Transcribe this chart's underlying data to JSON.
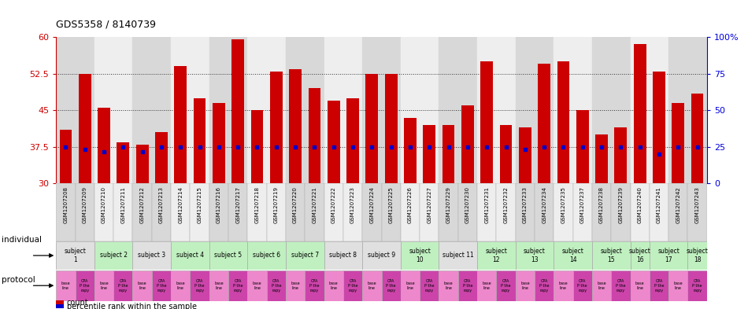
{
  "title": "GDS5358 / 8140739",
  "gsm_labels": [
    "GSM1207208",
    "GSM1207209",
    "GSM1207210",
    "GSM1207211",
    "GSM1207212",
    "GSM1207213",
    "GSM1207214",
    "GSM1207215",
    "GSM1207216",
    "GSM1207217",
    "GSM1207218",
    "GSM1207219",
    "GSM1207220",
    "GSM1207221",
    "GSM1207222",
    "GSM1207223",
    "GSM1207224",
    "GSM1207225",
    "GSM1207226",
    "GSM1207227",
    "GSM1207229",
    "GSM1207230",
    "GSM1207231",
    "GSM1207232",
    "GSM1207233",
    "GSM1207234",
    "GSM1207235",
    "GSM1207237",
    "GSM1207238",
    "GSM1207239",
    "GSM1207240",
    "GSM1207241",
    "GSM1207242",
    "GSM1207243"
  ],
  "bar_values": [
    41.0,
    52.5,
    45.5,
    38.5,
    38.0,
    40.5,
    54.0,
    47.5,
    46.5,
    59.5,
    45.0,
    53.0,
    53.5,
    49.5,
    47.0,
    47.5,
    52.5,
    52.5,
    43.5,
    42.0,
    42.0,
    46.0,
    55.0,
    42.0,
    41.5,
    54.5,
    55.0,
    45.0,
    40.0,
    41.5,
    58.5,
    53.0,
    46.5,
    48.5
  ],
  "percentile_values": [
    37.5,
    37.0,
    36.5,
    37.5,
    36.5,
    37.5,
    37.5,
    37.5,
    37.5,
    37.5,
    37.5,
    37.5,
    37.5,
    37.5,
    37.5,
    37.5,
    37.5,
    37.5,
    37.5,
    37.5,
    37.5,
    37.5,
    37.5,
    37.5,
    37.0,
    37.5,
    37.5,
    37.5,
    37.5,
    37.5,
    37.5,
    36.0,
    37.5,
    37.5
  ],
  "ylim": [
    30,
    60
  ],
  "yticks": [
    30,
    37.5,
    45,
    52.5,
    60
  ],
  "ytick_labels": [
    "30",
    "37.5",
    "45",
    "52.5",
    "60"
  ],
  "right_ytick_pcts": [
    0,
    25,
    50,
    75,
    100
  ],
  "bar_color": "#cc0000",
  "percentile_color": "#0000cc",
  "bar_width": 0.65,
  "col_bg_even": "#d8d8d8",
  "col_bg_odd": "#eeeeee",
  "subjects": [
    {
      "label": "subject\n1",
      "start": 0,
      "end": 2,
      "color": "#e0e0e0"
    },
    {
      "label": "subject 2",
      "start": 2,
      "end": 4,
      "color": "#c0f0c0"
    },
    {
      "label": "subject 3",
      "start": 4,
      "end": 6,
      "color": "#e0e0e0"
    },
    {
      "label": "subject 4",
      "start": 6,
      "end": 8,
      "color": "#c0f0c0"
    },
    {
      "label": "subject 5",
      "start": 8,
      "end": 10,
      "color": "#c0f0c0"
    },
    {
      "label": "subject 6",
      "start": 10,
      "end": 12,
      "color": "#c0f0c0"
    },
    {
      "label": "subject 7",
      "start": 12,
      "end": 14,
      "color": "#c0f0c0"
    },
    {
      "label": "subject 8",
      "start": 14,
      "end": 16,
      "color": "#e0e0e0"
    },
    {
      "label": "subject 9",
      "start": 16,
      "end": 18,
      "color": "#e0e0e0"
    },
    {
      "label": "subject\n10",
      "start": 18,
      "end": 20,
      "color": "#c0f0c0"
    },
    {
      "label": "subject 11",
      "start": 20,
      "end": 22,
      "color": "#e0e0e0"
    },
    {
      "label": "subject\n12",
      "start": 22,
      "end": 24,
      "color": "#c0f0c0"
    },
    {
      "label": "subject\n13",
      "start": 24,
      "end": 26,
      "color": "#c0f0c0"
    },
    {
      "label": "subject\n14",
      "start": 26,
      "end": 28,
      "color": "#c0f0c0"
    },
    {
      "label": "subject\n15",
      "start": 28,
      "end": 30,
      "color": "#c0f0c0"
    },
    {
      "label": "subject\n16",
      "start": 30,
      "end": 31,
      "color": "#c0f0c0"
    },
    {
      "label": "subject\n17",
      "start": 31,
      "end": 33,
      "color": "#c0f0c0"
    },
    {
      "label": "subject\n18",
      "start": 33,
      "end": 34,
      "color": "#c0f0c0"
    }
  ],
  "protocol_baseline_color": "#ee88cc",
  "protocol_cpa_color": "#cc44aa",
  "bg_color": "#ffffff",
  "axis_left_color": "#cc0000",
  "axis_right_color": "#0000dd",
  "legend_count_color": "#cc0000",
  "legend_pct_color": "#0000cc"
}
